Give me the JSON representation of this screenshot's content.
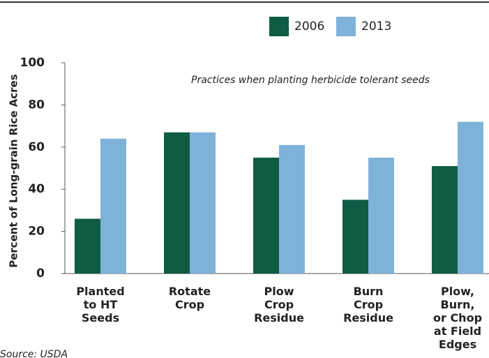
{
  "chart_data": {
    "type": "bar",
    "y_label": "Percent of Long-grain Rice Acres",
    "annotation": "Practices when planting herbicide tolerant seeds",
    "source": "Source: USDA",
    "categories": [
      "Planted\nto HT\nSeeds",
      "Rotate\nCrop",
      "Plow\nCrop\nResidue",
      "Burn\nCrop\nResidue",
      "Plow,\nBurn,\nor Chop\nat Field\nEdges"
    ],
    "series": [
      {
        "name": "2006",
        "color": "#0f5c45",
        "values": [
          26,
          67,
          55,
          35,
          51
        ]
      },
      {
        "name": "2013",
        "color": "#7fb2d9",
        "values": [
          64,
          67,
          61,
          55,
          72
        ]
      }
    ],
    "ylim": [
      0,
      100
    ],
    "yticks": [
      0,
      20,
      40,
      60,
      80,
      100
    ],
    "grid": false,
    "legend": "top"
  }
}
